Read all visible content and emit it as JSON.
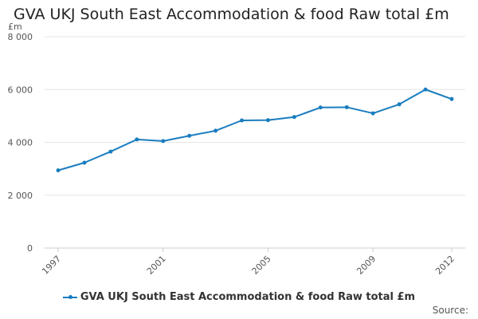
{
  "title": "GVA UKJ South East Accommodation & food Raw total £m",
  "unit_label": "£m",
  "source_label": "Source:",
  "colors": {
    "series": "#1a7dbf",
    "grid": "#e6e6e6",
    "text": "#555555"
  },
  "chart_data": {
    "type": "line",
    "title": "GVA UKJ South East Accommodation & food Raw total £m",
    "xlabel": "",
    "ylabel": "£m",
    "ylim": [
      0,
      8000
    ],
    "y_ticks": [
      0,
      2000,
      4000,
      6000,
      8000
    ],
    "y_tick_labels": [
      "0",
      "2 000",
      "4 000",
      "6 000",
      "8 000"
    ],
    "x": [
      1997,
      1998,
      1999,
      2000,
      2001,
      2002,
      2003,
      2004,
      2005,
      2006,
      2007,
      2008,
      2009,
      2010,
      2011,
      2012
    ],
    "x_tick_labels": [
      "1997",
      "2001",
      "2005",
      "2009",
      "2012"
    ],
    "grid": true,
    "legend_position": "bottom",
    "series": [
      {
        "name": "GVA UKJ South East Accommodation & food Raw total £m",
        "values": [
          2940,
          3230,
          3650,
          4110,
          4050,
          4250,
          4440,
          4830,
          4840,
          4960,
          5320,
          5330,
          5100,
          5440,
          6000,
          5640
        ]
      }
    ]
  }
}
